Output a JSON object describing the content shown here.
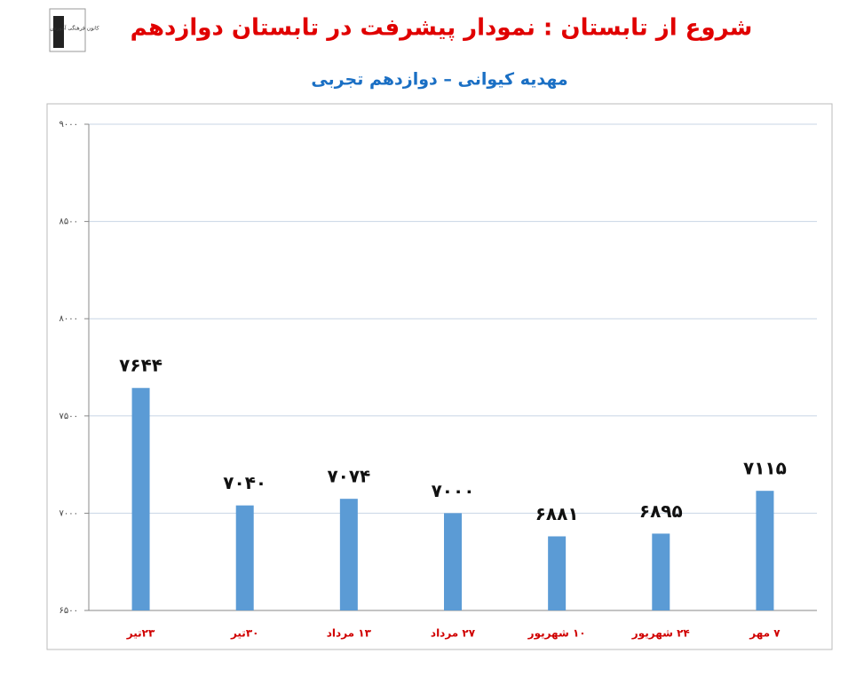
{
  "logo": "کانون فرهنگی آموزش",
  "chart_data": {
    "type": "bar",
    "title": "شروع از تابستان : نمودار پیشرفت در تابستان دوازدهم",
    "subtitle": "مهدیه کیوانی – دوازدهم تجربی",
    "categories": [
      "۲۳تیر",
      "۳۰تیر",
      "۱۳ مرداد",
      "۲۷ مرداد",
      "۱۰ شهریور",
      "۲۴ شهریور",
      "۷ مهر"
    ],
    "values": [
      7644,
      7040,
      7074,
      7000,
      6881,
      6895,
      7115
    ],
    "value_labels": [
      "۷۶۴۴",
      "۷۰۴۰",
      "۷۰۷۴",
      "۷۰۰۰",
      "۶۸۸۱",
      "۶۸۹۵",
      "۷۱۱۵"
    ],
    "color": "#5b9bd5",
    "ylim": [
      6500,
      9000
    ],
    "yticks": [
      {
        "value": 6500,
        "label": "۶۵۰۰"
      },
      {
        "value": 7000,
        "label": "۷۰۰۰"
      },
      {
        "value": 7500,
        "label": "۷۵۰۰"
      },
      {
        "value": 8000,
        "label": "۸۰۰۰"
      },
      {
        "value": 8500,
        "label": "۸۵۰۰"
      },
      {
        "value": 9000,
        "label": "۹۰۰۰"
      }
    ],
    "grid": true
  }
}
